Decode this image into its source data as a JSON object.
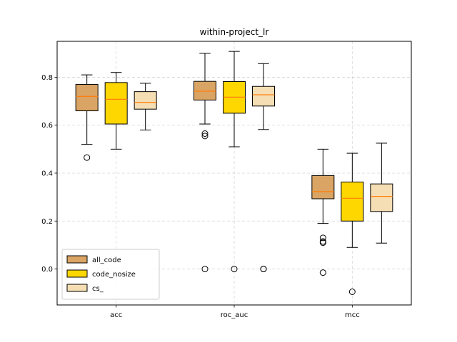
{
  "chart_data": {
    "type": "boxplot",
    "title": "within-project_lr",
    "xlabel": "",
    "ylabel": "",
    "categories": [
      "acc",
      "roc_auc",
      "mcc"
    ],
    "ylim": [
      -0.15,
      0.95
    ],
    "yticks": [
      0.0,
      0.2,
      0.4,
      0.6,
      0.8
    ],
    "ytick_labels": [
      "0.0",
      "0.2",
      "0.4",
      "0.6",
      "0.8"
    ],
    "grid": true,
    "legend_position": "lower-left",
    "median_color": "#ff7f0e",
    "series": [
      {
        "name": "all_code",
        "color": "#d9a464",
        "boxes": [
          {
            "whisker_low": 0.52,
            "q1": 0.66,
            "median": 0.72,
            "q3": 0.77,
            "whisker_high": 0.81,
            "outliers": [
              0.465
            ]
          },
          {
            "whisker_low": 0.605,
            "q1": 0.705,
            "median": 0.742,
            "q3": 0.783,
            "whisker_high": 0.9,
            "outliers": [
              0.565,
              0.555,
              0.0
            ]
          },
          {
            "whisker_low": 0.19,
            "q1": 0.293,
            "median": 0.323,
            "q3": 0.39,
            "whisker_high": 0.5,
            "outliers": [
              0.13,
              0.115,
              0.11,
              -0.015
            ]
          }
        ]
      },
      {
        "name": "code_nosize",
        "color": "#ffd700",
        "boxes": [
          {
            "whisker_low": 0.5,
            "q1": 0.605,
            "median": 0.708,
            "q3": 0.778,
            "whisker_high": 0.82,
            "outliers": []
          },
          {
            "whisker_low": 0.51,
            "q1": 0.65,
            "median": 0.717,
            "q3": 0.782,
            "whisker_high": 0.908,
            "outliers": [
              0.0
            ]
          },
          {
            "whisker_low": 0.09,
            "q1": 0.2,
            "median": 0.295,
            "q3": 0.363,
            "whisker_high": 0.483,
            "outliers": [
              -0.095
            ]
          }
        ]
      },
      {
        "name": "cs_",
        "color": "#f5deb3",
        "boxes": [
          {
            "whisker_low": 0.58,
            "q1": 0.667,
            "median": 0.695,
            "q3": 0.74,
            "whisker_high": 0.775,
            "outliers": []
          },
          {
            "whisker_low": 0.582,
            "q1": 0.68,
            "median": 0.727,
            "q3": 0.762,
            "whisker_high": 0.857,
            "outliers": [
              0.0,
              0.0
            ]
          },
          {
            "whisker_low": 0.108,
            "q1": 0.24,
            "median": 0.303,
            "q3": 0.355,
            "whisker_high": 0.525,
            "outliers": []
          }
        ]
      }
    ]
  }
}
